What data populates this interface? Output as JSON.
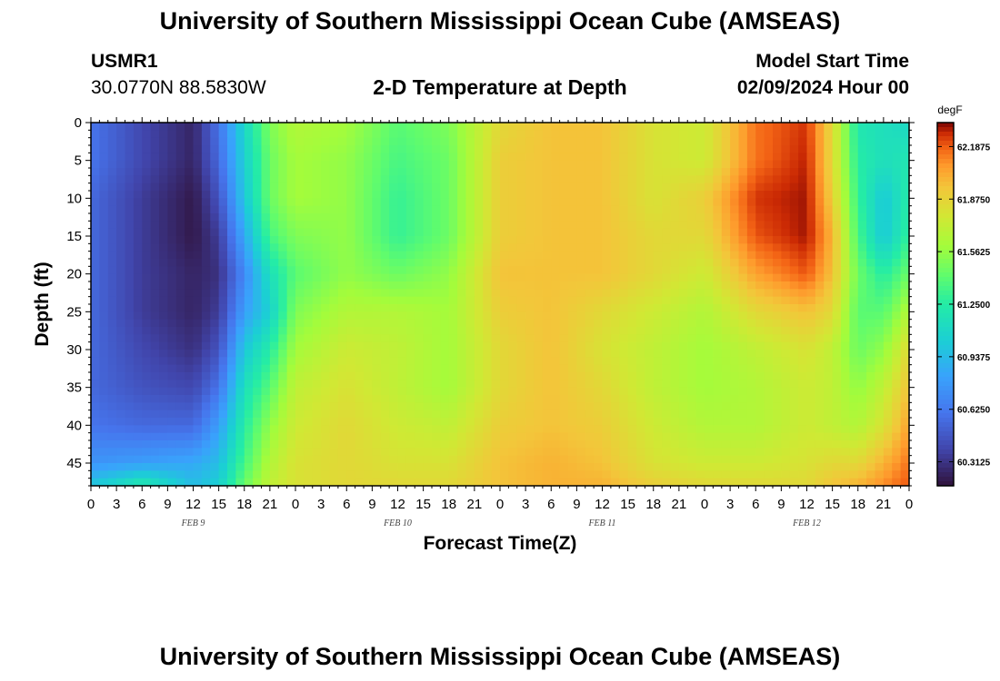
{
  "header": {
    "title": "University of Southern Mississippi Ocean Cube (AMSEAS)",
    "station_id": "USMR1",
    "station_coords": "30.0770N  88.5830W",
    "plot_title": "2-D Temperature at Depth",
    "model_start_label": "Model Start Time",
    "model_start_value": "02/09/2024 Hour 00"
  },
  "footer": {
    "title": "University of Southern Mississippi Ocean Cube (AMSEAS)"
  },
  "chart_data": {
    "type": "heatmap",
    "title": "2-D Temperature at Depth",
    "xlabel": "Forecast Time(Z)",
    "ylabel": "Depth (ft)",
    "colorbar_unit": "degF",
    "colorbar_ticks": [
      "62.1875",
      "61.8750",
      "61.5625",
      "61.2500",
      "60.9375",
      "60.6250",
      "60.3125"
    ],
    "colorbar_range": [
      60.17,
      62.33
    ],
    "xlim_hours": [
      0,
      96
    ],
    "ylim_ft": [
      0,
      48
    ],
    "x_tick_labels": [
      "0",
      "3",
      "6",
      "9",
      "12",
      "15",
      "18",
      "21",
      "0",
      "3",
      "6",
      "9",
      "12",
      "15",
      "18",
      "21",
      "0",
      "3",
      "6",
      "9",
      "12",
      "15",
      "18",
      "21",
      "0",
      "3",
      "6",
      "9",
      "12",
      "15",
      "18",
      "21",
      "0"
    ],
    "y_ticks": [
      0,
      5,
      10,
      15,
      20,
      25,
      30,
      35,
      40,
      45
    ],
    "day_labels": [
      {
        "label": "FEB 9",
        "hour": 12
      },
      {
        "label": "FEB 10",
        "hour": 36
      },
      {
        "label": "FEB 11",
        "hour": 60
      },
      {
        "label": "FEB 12",
        "hour": 84
      }
    ],
    "depths_ft": [
      0,
      5,
      10,
      15,
      20,
      25,
      30,
      35,
      40,
      45,
      48
    ],
    "hours": [
      0,
      6,
      12,
      15,
      18,
      21,
      24,
      30,
      36,
      42,
      48,
      54,
      60,
      66,
      72,
      78,
      84,
      87,
      90,
      93,
      96
    ],
    "temps_degF": [
      [
        60.6,
        60.4,
        60.25,
        60.6,
        61.1,
        61.5,
        61.65,
        61.6,
        61.4,
        61.5,
        61.85,
        61.95,
        61.95,
        61.8,
        61.75,
        62.15,
        62.25,
        61.85,
        61.2,
        61.15,
        61.1
      ],
      [
        60.6,
        60.4,
        60.25,
        60.55,
        61.05,
        61.45,
        61.6,
        61.55,
        61.35,
        61.45,
        61.9,
        61.95,
        61.95,
        61.8,
        61.75,
        62.15,
        62.28,
        61.85,
        61.25,
        61.15,
        61.2
      ],
      [
        60.55,
        60.35,
        60.2,
        60.45,
        61.0,
        61.45,
        61.6,
        61.55,
        61.3,
        61.45,
        61.9,
        61.95,
        61.95,
        61.8,
        61.9,
        62.25,
        62.3,
        61.9,
        61.3,
        61.0,
        61.25
      ],
      [
        60.55,
        60.35,
        60.2,
        60.35,
        60.85,
        61.35,
        61.5,
        61.55,
        61.3,
        61.45,
        61.9,
        61.95,
        61.95,
        61.85,
        61.85,
        62.2,
        62.3,
        62.0,
        61.35,
        61.0,
        61.3
      ],
      [
        60.55,
        60.35,
        60.25,
        60.3,
        60.7,
        61.15,
        61.4,
        61.55,
        61.45,
        61.55,
        61.95,
        61.95,
        61.95,
        61.85,
        61.75,
        62.05,
        62.2,
        61.95,
        61.45,
        61.25,
        61.45
      ],
      [
        60.55,
        60.35,
        60.25,
        60.35,
        60.8,
        61.05,
        61.5,
        61.65,
        61.65,
        61.6,
        61.9,
        61.95,
        61.85,
        61.75,
        61.65,
        61.85,
        61.95,
        61.85,
        61.4,
        61.4,
        61.65
      ],
      [
        60.55,
        60.4,
        60.3,
        60.45,
        61.0,
        61.25,
        61.6,
        61.75,
        61.7,
        61.6,
        61.85,
        61.95,
        61.8,
        61.7,
        61.6,
        61.7,
        61.8,
        61.7,
        61.45,
        61.55,
        61.85
      ],
      [
        60.55,
        60.45,
        60.4,
        60.6,
        61.15,
        61.4,
        61.7,
        61.8,
        61.7,
        61.6,
        61.85,
        61.95,
        61.85,
        61.7,
        61.6,
        61.65,
        61.75,
        61.7,
        61.55,
        61.7,
        61.95
      ],
      [
        60.6,
        60.55,
        60.55,
        60.8,
        61.25,
        61.55,
        61.75,
        61.85,
        61.75,
        61.7,
        61.9,
        61.95,
        61.9,
        61.75,
        61.65,
        61.65,
        61.75,
        61.7,
        61.65,
        61.8,
        62.05
      ],
      [
        60.75,
        60.8,
        60.85,
        60.95,
        61.35,
        61.65,
        61.8,
        61.85,
        61.8,
        61.8,
        61.95,
        62.0,
        61.95,
        61.8,
        61.75,
        61.75,
        61.8,
        61.85,
        61.85,
        62.0,
        62.15
      ],
      [
        61.0,
        61.25,
        60.95,
        61.05,
        61.45,
        61.7,
        61.8,
        61.85,
        61.85,
        61.85,
        61.95,
        62.0,
        62.0,
        61.9,
        61.85,
        61.85,
        61.85,
        61.95,
        62.0,
        62.1,
        62.2
      ]
    ]
  }
}
